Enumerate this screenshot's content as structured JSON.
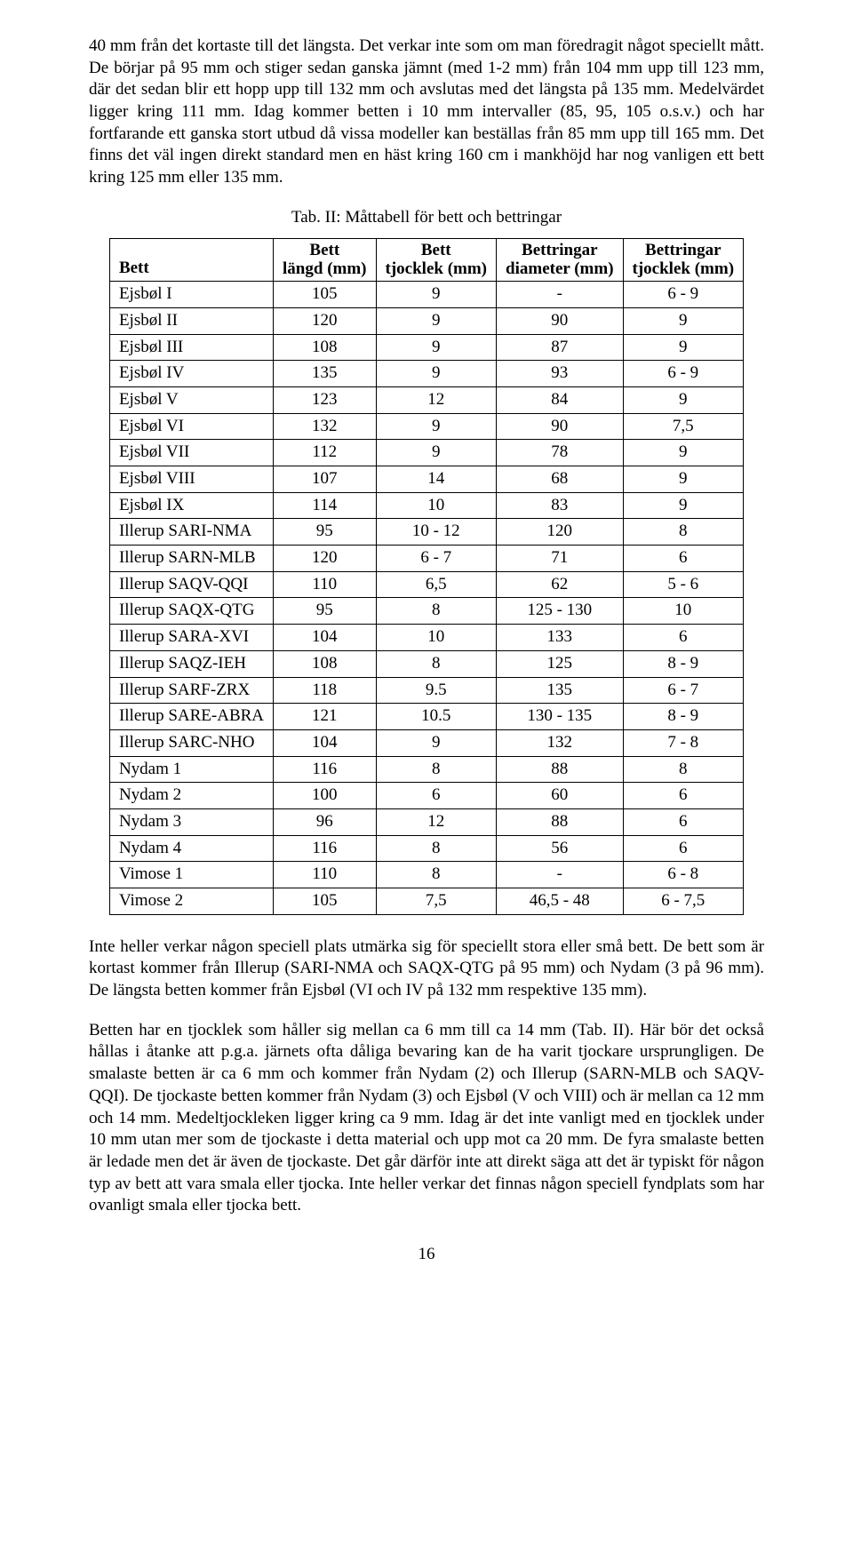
{
  "paragraphs": {
    "p1": "40 mm från det kortaste till det längsta. Det verkar inte som om man föredragit något speciellt mått. De börjar på 95 mm och stiger sedan ganska jämnt (med 1-2 mm) från 104 mm upp till 123 mm, där det sedan blir ett hopp upp till 132 mm och avslutas med det längsta på 135 mm. Medelvärdet ligger kring 111 mm. Idag kommer betten i 10 mm intervaller (85, 95, 105 o.s.v.) och har fortfarande ett ganska stort utbud då vissa modeller kan beställas från 85 mm upp till 165 mm. Det finns det väl ingen direkt standard men en häst kring 160 cm i mankhöjd har nog vanligen ett bett kring 125 mm eller 135 mm.",
    "p2": "Inte heller verkar någon speciell plats utmärka sig för speciellt stora eller små bett. De bett som är kortast kommer från Illerup (SARI-NMA och SAQX-QTG på 95 mm) och Nydam (3 på 96 mm). De längsta betten kommer från Ejsbøl (VI och IV på 132 mm respektive 135 mm).",
    "p3": "Betten har en tjocklek som håller sig mellan ca 6 mm till ca 14 mm (Tab. II). Här bör det också hållas i åtanke att p.g.a. järnets ofta dåliga bevaring kan de ha varit tjockare ursprungligen. De smalaste betten är ca 6 mm och kommer från Nydam (2) och Illerup (SARN-MLB och SAQV-QQI). De tjockaste betten kommer från Nydam (3) och Ejsbøl (V och VIII) och är mellan ca 12 mm och 14 mm. Medeltjockleken ligger kring ca 9 mm. Idag är det inte vanligt med en tjocklek under 10 mm utan mer som de tjockaste i detta material och upp mot ca 20 mm. De fyra smalaste betten är ledade men det är även de tjockaste. Det går därför inte att direkt säga att det är typiskt för någon typ av bett att vara smala eller tjocka. Inte heller verkar det finnas någon speciell fyndplats som har ovanligt smala eller tjocka bett."
  },
  "table": {
    "caption": "Tab. II: Måttabell för bett och bettringar",
    "headers": {
      "c0": "Bett",
      "c1a": "Bett",
      "c1b": "längd (mm)",
      "c2a": "Bett",
      "c2b": "tjocklek (mm)",
      "c3a": "Bettringar",
      "c3b": "diameter (mm)",
      "c4a": "Bettringar",
      "c4b": "tjocklek (mm)"
    },
    "rows": [
      {
        "n": "Ejsbøl I",
        "a": "105",
        "b": "9",
        "c": "-",
        "d": "6 - 9"
      },
      {
        "n": "Ejsbøl II",
        "a": "120",
        "b": "9",
        "c": "90",
        "d": "9"
      },
      {
        "n": "Ejsbøl III",
        "a": "108",
        "b": "9",
        "c": "87",
        "d": "9"
      },
      {
        "n": "Ejsbøl IV",
        "a": "135",
        "b": "9",
        "c": "93",
        "d": "6 - 9"
      },
      {
        "n": "Ejsbøl V",
        "a": "123",
        "b": "12",
        "c": "84",
        "d": "9"
      },
      {
        "n": "Ejsbøl VI",
        "a": "132",
        "b": "9",
        "c": "90",
        "d": "7,5"
      },
      {
        "n": "Ejsbøl VII",
        "a": "112",
        "b": "9",
        "c": "78",
        "d": "9"
      },
      {
        "n": "Ejsbøl VIII",
        "a": "107",
        "b": "14",
        "c": "68",
        "d": "9"
      },
      {
        "n": "Ejsbøl IX",
        "a": "114",
        "b": "10",
        "c": "83",
        "d": "9"
      },
      {
        "n": "Illerup SARI-NMA",
        "a": "95",
        "b": "10 - 12",
        "c": "120",
        "d": "8"
      },
      {
        "n": "Illerup SARN-MLB",
        "a": "120",
        "b": "6 - 7",
        "c": "71",
        "d": "6"
      },
      {
        "n": "Illerup SAQV-QQI",
        "a": "110",
        "b": "6,5",
        "c": "62",
        "d": "5 - 6"
      },
      {
        "n": "Illerup SAQX-QTG",
        "a": "95",
        "b": "8",
        "c": "125 - 130",
        "d": "10"
      },
      {
        "n": "Illerup SARA-XVI",
        "a": "104",
        "b": "10",
        "c": "133",
        "d": "6"
      },
      {
        "n": "Illerup SAQZ-IEH",
        "a": "108",
        "b": "8",
        "c": "125",
        "d": "8 - 9"
      },
      {
        "n": "Illerup SARF-ZRX",
        "a": "118",
        "b": "9.5",
        "c": "135",
        "d": "6 - 7"
      },
      {
        "n": "Illerup SARE-ABRA",
        "a": "121",
        "b": "10.5",
        "c": "130 - 135",
        "d": "8 - 9"
      },
      {
        "n": "Illerup SARC-NHO",
        "a": "104",
        "b": "9",
        "c": "132",
        "d": "7 - 8"
      },
      {
        "n": "Nydam 1",
        "a": "116",
        "b": "8",
        "c": "88",
        "d": "8"
      },
      {
        "n": "Nydam 2",
        "a": "100",
        "b": "6",
        "c": "60",
        "d": "6"
      },
      {
        "n": "Nydam 3",
        "a": "96",
        "b": "12",
        "c": "88",
        "d": "6"
      },
      {
        "n": "Nydam 4",
        "a": "116",
        "b": "8",
        "c": "56",
        "d": "6"
      },
      {
        "n": "Vimose 1",
        "a": "110",
        "b": "8",
        "c": "-",
        "d": "6 - 8"
      },
      {
        "n": "Vimose 2",
        "a": "105",
        "b": "7,5",
        "c": "46,5 - 48",
        "d": "6 - 7,5"
      }
    ]
  },
  "pagenum": "16"
}
